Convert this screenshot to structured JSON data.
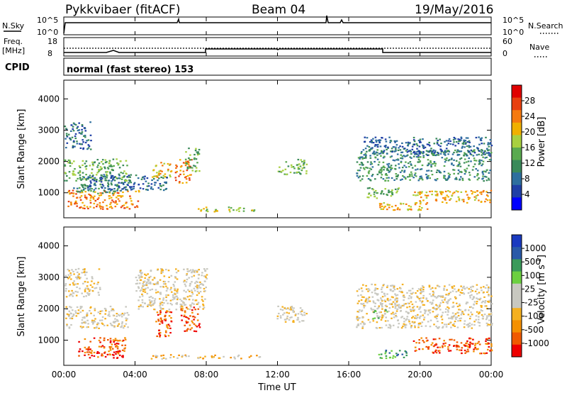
{
  "header": {
    "station": "Pykkvibaer (fitACF)",
    "beam": "Beam 04",
    "date": "19/May/2016"
  },
  "top_panels": {
    "nsky": {
      "left_label": "N.Sky",
      "ticks": [
        "10^5",
        "10^0"
      ]
    },
    "nsearch": {
      "right_label": "N.Search",
      "ticks": [
        "10^5",
        "10^0"
      ]
    },
    "freq": {
      "left_label": "Freq.",
      "unit": "[MHz]",
      "ticks": [
        "18",
        "8"
      ]
    },
    "nave": {
      "right_label": "Nave",
      "ticks": [
        "60",
        "0"
      ]
    },
    "cpid": {
      "left_label": "CPID",
      "text": "normal (fast stereo) 153"
    }
  },
  "x_axis": {
    "ticks": [
      "00:00",
      "04:00",
      "08:00",
      "12:00",
      "16:00",
      "20:00",
      "00:00"
    ],
    "label": "Time UT"
  },
  "colors": {
    "power": [
      "#0000ff",
      "#1f3fa6",
      "#2e6f9e",
      "#3a8a5a",
      "#5aaa50",
      "#a8d040",
      "#f0b000",
      "#f57a10",
      "#e84010",
      "#e00000"
    ],
    "velocity": [
      "#ee0000",
      "#f05a00",
      "#f59000",
      "#f5b020",
      "#c8c8c0",
      "#c8c8c0",
      "#6cd040",
      "#3a9a5a",
      "#2a5aa8",
      "#1a3ac0"
    ]
  },
  "chart_data": [
    {
      "type": "heatmap",
      "panel": "power",
      "ylabel": "Slant Range [km]",
      "xlabel": "Time UT",
      "y_ticks": [
        1000,
        2000,
        3000,
        4000
      ],
      "ylim": [
        200,
        4600
      ],
      "colorbar": {
        "label": "Power [dB]",
        "ticks": [
          "28",
          "24",
          "20",
          "16",
          "12",
          "8",
          "4"
        ]
      },
      "regions": [
        {
          "t0": 0.0,
          "t1": 3.6,
          "r0": 1400,
          "r1": 2100,
          "level": 4
        },
        {
          "t0": 0.0,
          "t1": 1.5,
          "r0": 2400,
          "r1": 3300,
          "level": 2
        },
        {
          "t0": 0.2,
          "t1": 4.2,
          "r0": 500,
          "r1": 1100,
          "level": 7
        },
        {
          "t0": 0.5,
          "t1": 3.2,
          "r0": 1000,
          "r1": 1300,
          "level": 3
        },
        {
          "t0": 1.0,
          "t1": 5.8,
          "r0": 1100,
          "r1": 1600,
          "level": 2
        },
        {
          "t0": 4.9,
          "t1": 6.0,
          "r0": 1500,
          "r1": 2000,
          "level": 6
        },
        {
          "t0": 6.2,
          "t1": 7.2,
          "r0": 1300,
          "r1": 2100,
          "level": 7
        },
        {
          "t0": 6.8,
          "t1": 7.6,
          "r0": 1700,
          "r1": 2500,
          "level": 4
        },
        {
          "t0": 9.0,
          "t1": 11.0,
          "r0": 420,
          "r1": 560,
          "level": 5
        },
        {
          "t0": 7.5,
          "t1": 8.6,
          "r0": 420,
          "r1": 560,
          "level": 5
        },
        {
          "t0": 11.9,
          "t1": 13.6,
          "r0": 1600,
          "r1": 2100,
          "level": 4
        },
        {
          "t0": 16.4,
          "t1": 24.0,
          "r0": 1400,
          "r1": 2400,
          "level": 3
        },
        {
          "t0": 16.8,
          "t1": 24.0,
          "r0": 2200,
          "r1": 2800,
          "level": 2
        },
        {
          "t0": 17.6,
          "t1": 20.5,
          "r0": 450,
          "r1": 700,
          "level": 6
        },
        {
          "t0": 19.5,
          "t1": 24.0,
          "r0": 700,
          "r1": 1100,
          "level": 6
        },
        {
          "t0": 17.0,
          "t1": 18.8,
          "r0": 850,
          "r1": 1200,
          "level": 4
        }
      ]
    },
    {
      "type": "heatmap",
      "panel": "velocity",
      "ylabel": "Slant Range [km]",
      "xlabel": "Time UT",
      "y_ticks": [
        1000,
        2000,
        3000,
        4000
      ],
      "ylim": [
        200,
        4600
      ],
      "colorbar": {
        "label": "Velocity [m s^-1]",
        "ticks": [
          "1000",
          "500",
          "100",
          "25",
          "-25",
          "-100",
          "-500",
          "-1000"
        ]
      },
      "regions": [
        {
          "t0": 0.0,
          "t1": 3.6,
          "r0": 1400,
          "r1": 2100,
          "level": 4
        },
        {
          "t0": 0.0,
          "t1": 2.0,
          "r0": 2400,
          "r1": 3300,
          "level": 4
        },
        {
          "t0": 0.8,
          "t1": 3.5,
          "r0": 450,
          "r1": 1100,
          "level": 1
        },
        {
          "t0": 5.0,
          "t1": 6.0,
          "r0": 1100,
          "r1": 2000,
          "level": 1
        },
        {
          "t0": 6.5,
          "t1": 7.6,
          "r0": 1300,
          "r1": 2100,
          "level": 1
        },
        {
          "t0": 4.0,
          "t1": 8.0,
          "r0": 2000,
          "r1": 3300,
          "level": 4
        },
        {
          "t0": 4.8,
          "t1": 11.0,
          "r0": 430,
          "r1": 560,
          "level": 3
        },
        {
          "t0": 11.9,
          "t1": 13.6,
          "r0": 1600,
          "r1": 2100,
          "level": 4
        },
        {
          "t0": 16.4,
          "t1": 24.0,
          "r0": 1400,
          "r1": 2800,
          "level": 4
        },
        {
          "t0": 17.3,
          "t1": 18.2,
          "r0": 1700,
          "r1": 2000,
          "level": 6
        },
        {
          "t0": 19.5,
          "t1": 24.0,
          "r0": 600,
          "r1": 1100,
          "level": 1
        },
        {
          "t0": 17.6,
          "t1": 19.2,
          "r0": 450,
          "r1": 700,
          "level": 7
        }
      ]
    }
  ]
}
